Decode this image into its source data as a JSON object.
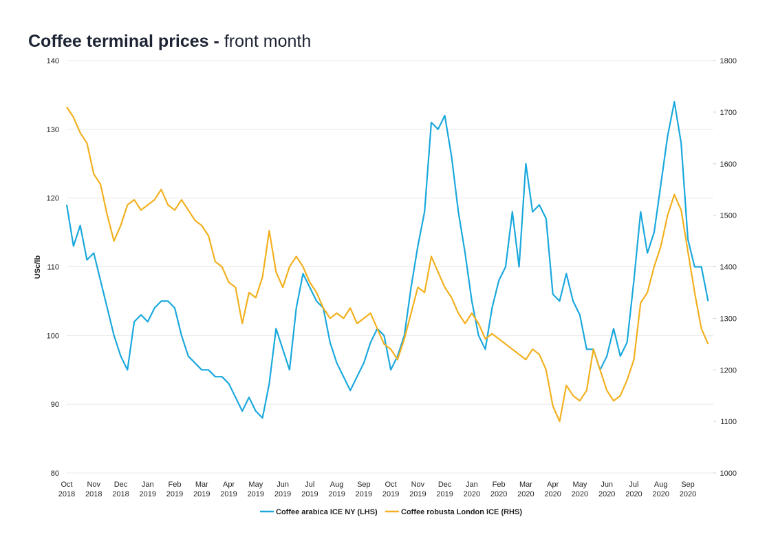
{
  "chart_data": {
    "type": "line",
    "title": "Coffee terminal prices -",
    "subtitle": "front month",
    "ylabel": "USc/lb",
    "ylim": [
      80,
      140
    ],
    "yticks": [
      80,
      90,
      100,
      110,
      120,
      130,
      140
    ],
    "y2lim": [
      1000,
      1800
    ],
    "y2ticks": [
      1000,
      1100,
      1200,
      1300,
      1400,
      1500,
      1600,
      1700,
      1800
    ],
    "grid": true,
    "legend": "bottom",
    "xticks": [
      {
        "month": "Oct",
        "year": "2018"
      },
      {
        "month": "Nov",
        "year": "2018"
      },
      {
        "month": "Dec",
        "year": "2018"
      },
      {
        "month": "Jan",
        "year": "2019"
      },
      {
        "month": "Feb",
        "year": "2019"
      },
      {
        "month": "Mar",
        "year": "2019"
      },
      {
        "month": "Apr",
        "year": "2019"
      },
      {
        "month": "May",
        "year": "2019"
      },
      {
        "month": "Jun",
        "year": "2019"
      },
      {
        "month": "Jul",
        "year": "2019"
      },
      {
        "month": "Aug",
        "year": "2019"
      },
      {
        "month": "Sep",
        "year": "2019"
      },
      {
        "month": "Oct",
        "year": "2019"
      },
      {
        "month": "Nov",
        "year": "2019"
      },
      {
        "month": "Dec",
        "year": "2019"
      },
      {
        "month": "Jan",
        "year": "2020"
      },
      {
        "month": "Feb",
        "year": "2020"
      },
      {
        "month": "Mar",
        "year": "2020"
      },
      {
        "month": "Apr",
        "year": "2020"
      },
      {
        "month": "May",
        "year": "2020"
      },
      {
        "month": "Jun",
        "year": "2020"
      },
      {
        "month": "Jul",
        "year": "2020"
      },
      {
        "month": "Aug",
        "year": "2020"
      },
      {
        "month": "Sep",
        "year": "2020"
      }
    ],
    "series": [
      {
        "name": "Coffee arabica ICE NY (LHS)",
        "color": "#1aa8dd",
        "axis": "y",
        "values": [
          119,
          113,
          116,
          111,
          112,
          108,
          104,
          100,
          97,
          95,
          102,
          103,
          102,
          104,
          105,
          105,
          104,
          100,
          97,
          96,
          95,
          95,
          94,
          94,
          93,
          91,
          89,
          91,
          89,
          88,
          93,
          101,
          98,
          95,
          104,
          109,
          107,
          105,
          104,
          99,
          96,
          94,
          92,
          94,
          96,
          99,
          101,
          100,
          95,
          97,
          100,
          107,
          113,
          118,
          131,
          130,
          132,
          126,
          118,
          112,
          105,
          100,
          98,
          104,
          108,
          110,
          118,
          110,
          125,
          118,
          119,
          117,
          106,
          105,
          109,
          105,
          103,
          98,
          98,
          95,
          97,
          101,
          97,
          99,
          108,
          118,
          112,
          115,
          122,
          129,
          134,
          128,
          114,
          110,
          110,
          105
        ]
      },
      {
        "name": "Coffee robusta London ICE (RHS)",
        "color": "#f2b01e",
        "axis": "y2",
        "values": [
          1710,
          1690,
          1660,
          1640,
          1580,
          1560,
          1500,
          1450,
          1480,
          1520,
          1530,
          1510,
          1520,
          1530,
          1550,
          1520,
          1510,
          1530,
          1510,
          1490,
          1480,
          1460,
          1410,
          1400,
          1370,
          1360,
          1290,
          1350,
          1340,
          1380,
          1470,
          1390,
          1360,
          1400,
          1420,
          1400,
          1370,
          1350,
          1320,
          1300,
          1310,
          1300,
          1320,
          1290,
          1300,
          1310,
          1280,
          1250,
          1240,
          1220,
          1260,
          1310,
          1360,
          1350,
          1420,
          1390,
          1360,
          1340,
          1310,
          1290,
          1310,
          1290,
          1260,
          1270,
          1260,
          1250,
          1240,
          1230,
          1220,
          1240,
          1230,
          1200,
          1130,
          1100,
          1170,
          1150,
          1140,
          1160,
          1240,
          1200,
          1160,
          1140,
          1150,
          1180,
          1220,
          1330,
          1350,
          1400,
          1440,
          1500,
          1540,
          1510,
          1430,
          1350,
          1280,
          1250
        ]
      }
    ]
  }
}
